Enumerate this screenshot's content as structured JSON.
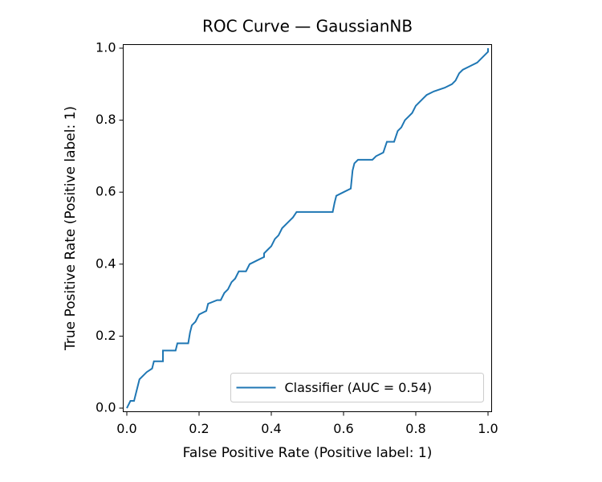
{
  "chart_data": {
    "type": "line",
    "title": "ROC Curve — GaussianNB",
    "xlabel": "False Positive Rate (Positive label: 1)",
    "ylabel": "True Positive Rate (Positive label: 1)",
    "xlim": [
      -0.01,
      1.01
    ],
    "ylim": [
      -0.01,
      1.01
    ],
    "xticks": [
      {
        "value": 0,
        "label": "0.0"
      },
      0.2,
      0.4,
      0.6,
      0.8,
      {
        "value": 1,
        "label": "1.0"
      }
    ],
    "yticks": [
      {
        "value": 0,
        "label": "0.0"
      },
      0.2,
      0.4,
      0.6,
      0.8,
      {
        "value": 1,
        "label": "1.0"
      }
    ],
    "grid": false,
    "legend": "lower right",
    "series": [
      {
        "name": "Classifier (AUC = 0.54)",
        "color": "#1f77b4",
        "x": [
          0,
          0.005,
          0.01,
          0.02,
          0.025,
          0.03,
          0.035,
          0.045,
          0.055,
          0.07,
          0.075,
          0.1,
          0.1,
          0.135,
          0.14,
          0.17,
          0.175,
          0.18,
          0.19,
          0.2,
          0.22,
          0.225,
          0.25,
          0.26,
          0.27,
          0.28,
          0.29,
          0.3,
          0.31,
          0.33,
          0.34,
          0.36,
          0.38,
          0.38,
          0.39,
          0.4,
          0.41,
          0.42,
          0.43,
          0.45,
          0.46,
          0.47,
          0.57,
          0.575,
          0.58,
          0.6,
          0.62,
          0.625,
          0.63,
          0.64,
          0.68,
          0.69,
          0.71,
          0.72,
          0.74,
          0.75,
          0.76,
          0.77,
          0.79,
          0.8,
          0.81,
          0.82,
          0.83,
          0.85,
          0.88,
          0.9,
          0.91,
          0.92,
          0.93,
          0.95,
          0.97,
          0.98,
          0.99,
          1,
          1
        ],
        "values": [
          0,
          0.01,
          0.02,
          0.02,
          0.04,
          0.06,
          0.08,
          0.09,
          0.1,
          0.11,
          0.13,
          0.13,
          0.16,
          0.16,
          0.18,
          0.18,
          0.21,
          0.23,
          0.24,
          0.26,
          0.27,
          0.29,
          0.3,
          0.3,
          0.32,
          0.33,
          0.35,
          0.36,
          0.38,
          0.38,
          0.4,
          0.41,
          0.42,
          0.43,
          0.44,
          0.45,
          0.47,
          0.48,
          0.5,
          0.52,
          0.53,
          0.545,
          0.545,
          0.57,
          0.59,
          0.6,
          0.61,
          0.66,
          0.68,
          0.69,
          0.69,
          0.7,
          0.71,
          0.74,
          0.74,
          0.77,
          0.78,
          0.8,
          0.82,
          0.84,
          0.85,
          0.86,
          0.87,
          0.88,
          0.89,
          0.9,
          0.91,
          0.93,
          0.94,
          0.95,
          0.96,
          0.97,
          0.98,
          0.99,
          1
        ]
      }
    ]
  }
}
